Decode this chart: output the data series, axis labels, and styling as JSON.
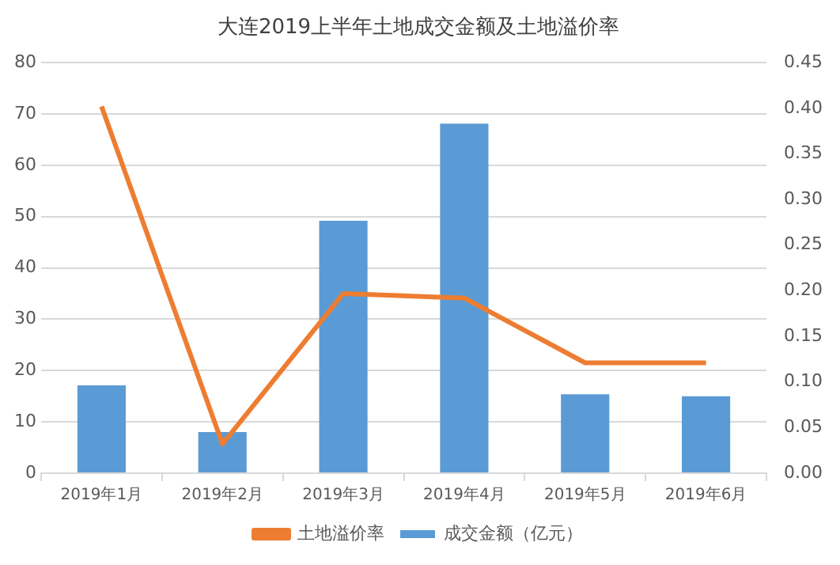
{
  "chart_data": {
    "type": "bar",
    "title": "大连2019上半年土地成交金额及土地溢价率",
    "categories": [
      "2019年1月",
      "2019年2月",
      "2019年3月",
      "2019年4月",
      "2019年5月",
      "2019年6月"
    ],
    "series": [
      {
        "name": "成交金额（亿元）",
        "color": "#5b9bd5",
        "values": [
          17.1,
          8.0,
          49.2,
          68.1,
          15.4,
          15.0
        ]
      },
      {
        "name": "土地溢价率",
        "type": "line",
        "axis": "y2",
        "color": "#ed7d31",
        "values": [
          0.402,
          0.032,
          0.197,
          0.192,
          0.121,
          0.121
        ]
      }
    ],
    "ylim": [
      0,
      80
    ],
    "yticks": [
      0,
      10,
      20,
      30,
      40,
      50,
      60,
      70,
      80
    ],
    "y2lim": [
      0,
      0.45
    ],
    "y2ticks": [
      {
        "value": 0,
        "label": "0.00"
      },
      {
        "value": 0.05,
        "label": "0.05"
      },
      {
        "value": 0.1,
        "label": "0.10"
      },
      {
        "value": 0.15,
        "label": "0.15"
      },
      {
        "value": 0.2,
        "label": "0.20"
      },
      {
        "value": 0.25,
        "label": "0.25"
      },
      {
        "value": 0.3,
        "label": "0.30"
      },
      {
        "value": 0.35,
        "label": "0.35"
      },
      {
        "value": 0.4,
        "label": "0.40"
      },
      {
        "value": 0.45,
        "label": "0.45"
      }
    ],
    "grid": "y",
    "legend": "bottom",
    "marker": "none"
  }
}
